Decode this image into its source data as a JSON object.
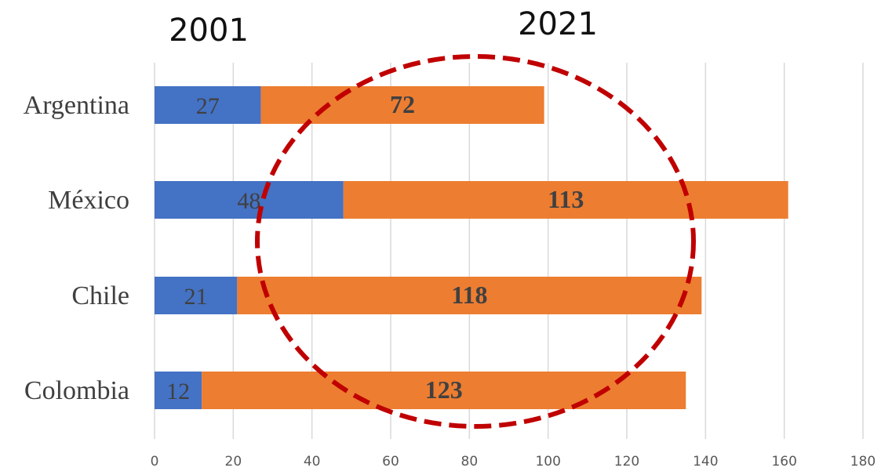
{
  "chart_data": {
    "type": "bar",
    "orientation": "horizontal",
    "stacked": true,
    "categories": [
      "Argentina",
      "México",
      "Chile",
      "Colombia"
    ],
    "series": [
      {
        "name": "2001",
        "values": [
          27,
          48,
          21,
          12
        ],
        "color": "#4472c4"
      },
      {
        "name": "2021",
        "values": [
          72,
          113,
          118,
          123
        ],
        "color": "#ed7d31"
      }
    ],
    "xlim": [
      0,
      180
    ],
    "xticks": [
      0,
      20,
      40,
      60,
      80,
      100,
      120,
      140,
      160,
      180
    ],
    "grid": "vertical",
    "legend": "top",
    "annotations": [
      {
        "type": "dashed-ellipse",
        "color": "#c00000"
      }
    ]
  },
  "colors": {
    "series_2001": "#4472c4",
    "series_2021": "#ed7d31",
    "highlight": "#c00000",
    "grid": "#d9d9d9"
  }
}
